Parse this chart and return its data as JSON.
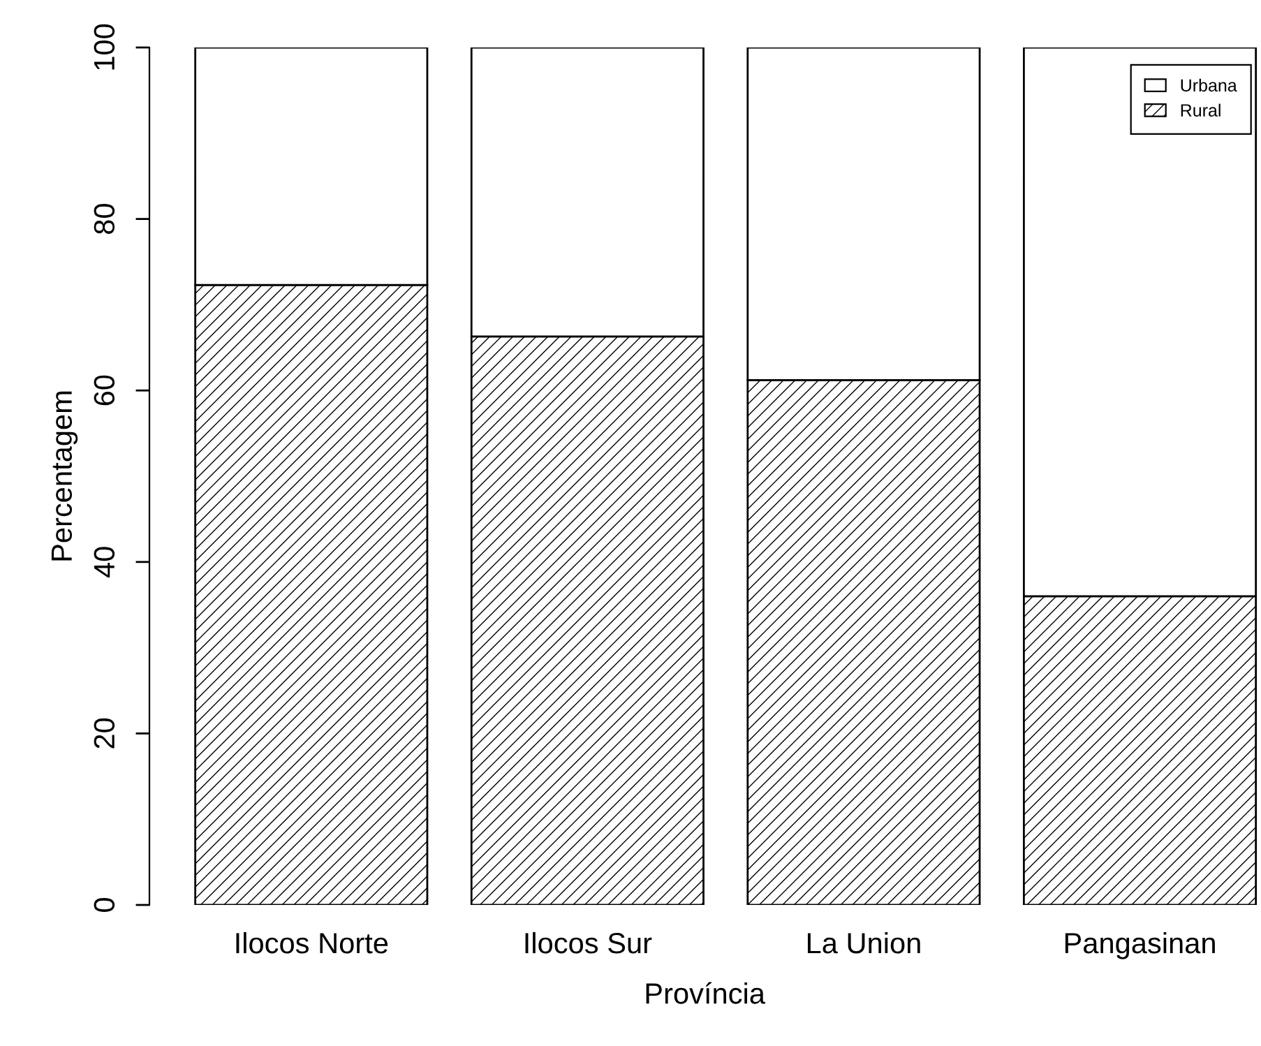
{
  "chart_data": {
    "type": "bar",
    "stacked": true,
    "xlabel": "Província",
    "ylabel": "Percentagem",
    "categories": [
      "Ilocos Norte",
      "Ilocos Sur",
      "La Union",
      "Pangasinan"
    ],
    "series": [
      {
        "name": "Rural",
        "color": "#000000",
        "values": [
          72.3,
          66.3,
          61.2,
          36.0
        ]
      },
      {
        "name": "Urbana",
        "color": "#ffffff",
        "values": [
          27.7,
          33.7,
          38.8,
          64.0
        ]
      }
    ],
    "ylim": [
      0,
      100
    ],
    "yticks": [
      0,
      20,
      40,
      60,
      80,
      100
    ],
    "grid": false,
    "legend": "top right"
  }
}
